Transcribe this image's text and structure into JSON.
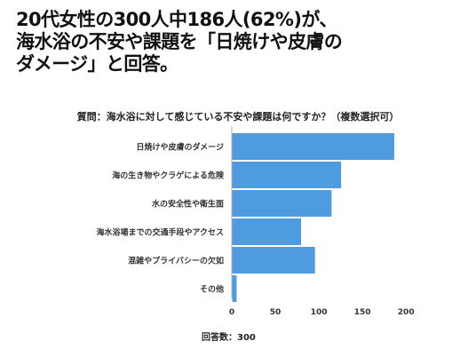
{
  "headline": {
    "line1": "20代女性の300人中186人(62%)が、",
    "line2": "海水浴の不安や課題を「日焼けや皮膚の",
    "line3": "ダメージ」と回答。"
  },
  "question": "質問：海水浴に対して感じている不安や課題は何ですか？（複数選択可）",
  "footer": "回答数：300",
  "chart_data": {
    "type": "bar",
    "orientation": "horizontal",
    "categories": [
      "日焼けや皮膚のダメージ",
      "海の生き物やクラゲによる危険",
      "水の安全性や衛生面",
      "海水浴場までの交通手段やアクセス",
      "混雑やプライバシーの欠如",
      "その他"
    ],
    "values": [
      186,
      125,
      114,
      79,
      95,
      5
    ],
    "xticks": [
      0,
      50,
      100,
      150,
      200
    ],
    "xlim": [
      0,
      200
    ],
    "bar_color": "#4f9be0",
    "axis_color": "#b0b0b0",
    "grid": false
  }
}
